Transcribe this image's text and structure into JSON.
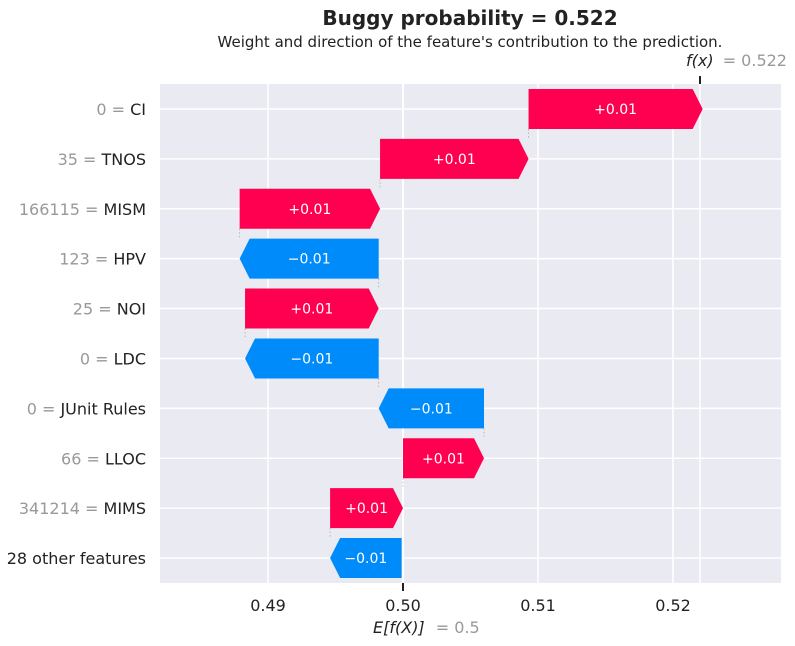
{
  "title": "Buggy probability = 0.522",
  "subtitle": "Weight and direction of the feature's contribution to the prediction.",
  "fx_label": "f(x)",
  "fx_value": "= 0.522",
  "efx_label": "E[f(X)]",
  "efx_value": "= 0.5",
  "colors": {
    "positive": "#ff0051",
    "negative": "#008bfb",
    "background": "#eaeaf2"
  },
  "chart_data": {
    "type": "bar",
    "subtype": "waterfall",
    "base_value": 0.5,
    "final_value": 0.522,
    "xlim": [
      0.482,
      0.528
    ],
    "x_ticks": [
      "0.49",
      "0.50",
      "0.51",
      "0.52"
    ],
    "rows": [
      {
        "value": "0",
        "feature": "CI",
        "start": 0.5093,
        "end": 0.5222,
        "label": "+0.01"
      },
      {
        "value": "35",
        "feature": "TNOS",
        "start": 0.4983,
        "end": 0.5093,
        "label": "+0.01"
      },
      {
        "value": "166115",
        "feature": "MISM",
        "start": 0.4879,
        "end": 0.4983,
        "label": "+0.01"
      },
      {
        "value": "123",
        "feature": "HPV",
        "start": 0.4982,
        "end": 0.4879,
        "label": "−0.01"
      },
      {
        "value": "25",
        "feature": "NOI",
        "start": 0.4883,
        "end": 0.4982,
        "label": "+0.01"
      },
      {
        "value": "0",
        "feature": "LDC",
        "start": 0.4982,
        "end": 0.4883,
        "label": "−0.01"
      },
      {
        "value": "0",
        "feature": "JUnit Rules",
        "start": 0.506,
        "end": 0.4982,
        "label": "−0.01"
      },
      {
        "value": "66",
        "feature": "LLOC",
        "start": 0.5,
        "end": 0.506,
        "label": "+0.01"
      },
      {
        "value": "341214",
        "feature": "MIMS",
        "start": 0.4946,
        "end": 0.5,
        "label": "+0.01"
      },
      {
        "value": "",
        "feature": "28 other features",
        "start": 0.4999,
        "end": 0.4946,
        "label": "−0.01"
      }
    ]
  }
}
